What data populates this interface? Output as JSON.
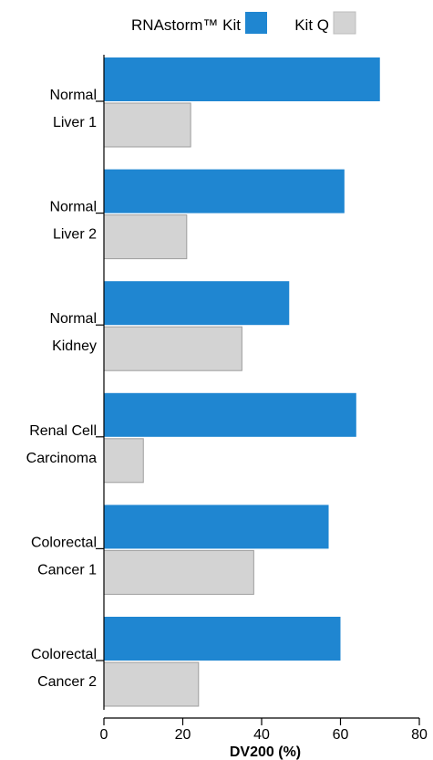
{
  "chart_data": {
    "type": "bar",
    "orientation": "horizontal",
    "title": "",
    "xlabel": "DV200 (%)",
    "ylabel": "",
    "xlim": [
      0,
      80
    ],
    "xticks": [
      0,
      20,
      40,
      60,
      80
    ],
    "grid": false,
    "legend_position": "top",
    "categories": [
      [
        "Normal",
        "Liver 1"
      ],
      [
        "Normal",
        "Liver 2"
      ],
      [
        "Normal",
        "Kidney"
      ],
      [
        "Renal Cell",
        "Carcinoma"
      ],
      [
        "Colorectal",
        "Cancer 1"
      ],
      [
        "Colorectal",
        "Cancer 2"
      ]
    ],
    "series": [
      {
        "name": "RNAstorm™ Kit",
        "color": "#1f86d1",
        "values": [
          70,
          61,
          47,
          64,
          57,
          60
        ]
      },
      {
        "name": "Kit Q",
        "color": "#d3d3d3",
        "values": [
          22,
          21,
          35,
          10,
          38,
          24
        ]
      }
    ]
  }
}
